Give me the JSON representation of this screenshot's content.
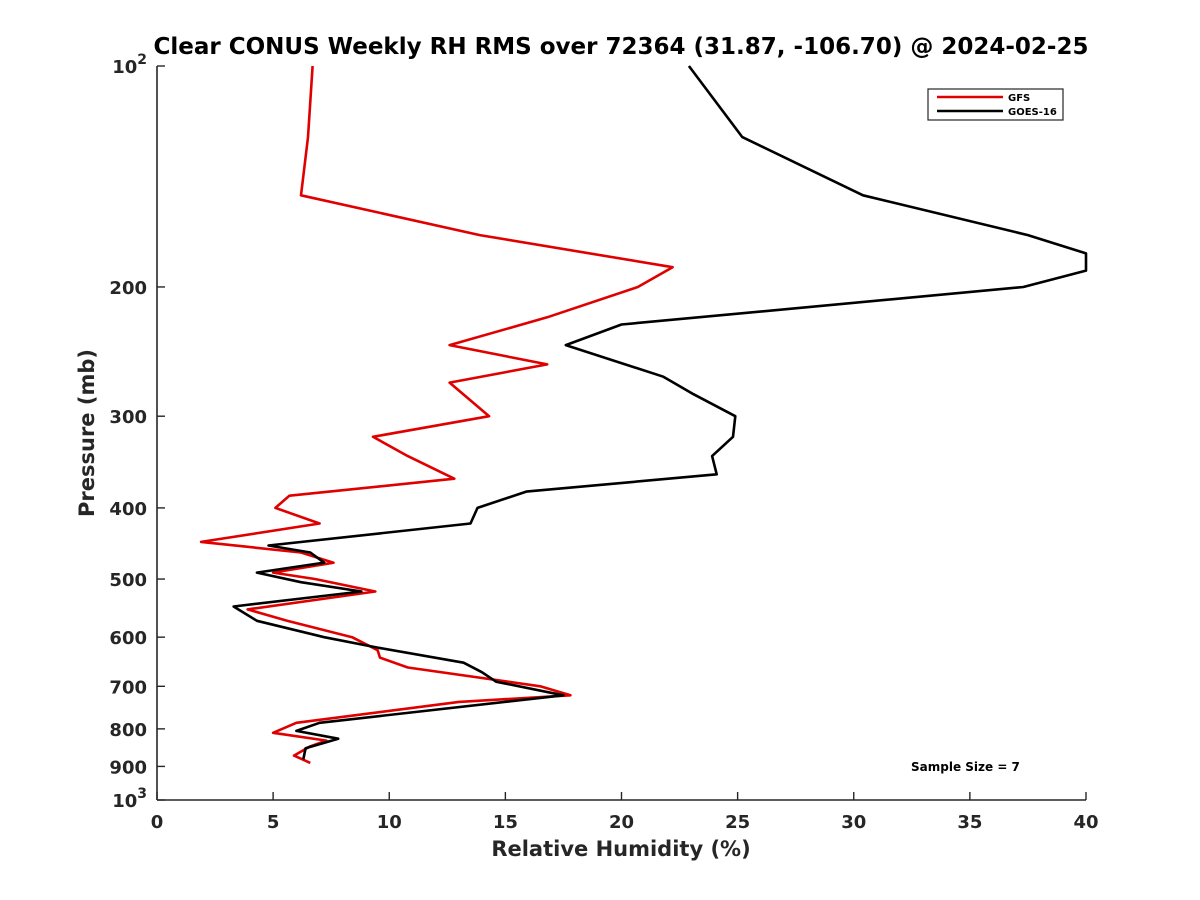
{
  "chart_data": {
    "type": "line",
    "title": "Clear CONUS Weekly RH RMS over 72364 (31.87, -106.70) @ 2024-02-25",
    "xlabel": "Relative Humidity (%)",
    "ylabel": "Pressure (mb)",
    "xlim": [
      0,
      40
    ],
    "ylim": [
      100,
      1000
    ],
    "y_scale": "log",
    "y_reversed": true,
    "x_ticks": [
      0,
      5,
      10,
      15,
      20,
      25,
      30,
      35,
      40
    ],
    "y_ticks": [
      {
        "value": 100,
        "base": "10",
        "exp": "2"
      },
      {
        "value": 200,
        "label": "200"
      },
      {
        "value": 300,
        "label": "300"
      },
      {
        "value": 400,
        "label": "400"
      },
      {
        "value": 500,
        "label": "500"
      },
      {
        "value": 600,
        "label": "600"
      },
      {
        "value": 700,
        "label": "700"
      },
      {
        "value": 800,
        "label": "800"
      },
      {
        "value": 900,
        "label": "900"
      },
      {
        "value": 1000,
        "base": "10",
        "exp": "3"
      }
    ],
    "legend_position": "top-right",
    "series": [
      {
        "name": "GFS",
        "color": "#e00000",
        "points": [
          [
            6.7,
            100
          ],
          [
            6.5,
            125
          ],
          [
            6.2,
            150
          ],
          [
            13.9,
            170
          ],
          [
            22.2,
            188
          ],
          [
            20.7,
            200
          ],
          [
            16.8,
            220
          ],
          [
            12.6,
            240
          ],
          [
            16.8,
            255
          ],
          [
            12.6,
            270
          ],
          [
            14.3,
            300
          ],
          [
            9.3,
            320
          ],
          [
            10.8,
            340
          ],
          [
            12.8,
            365
          ],
          [
            5.7,
            385
          ],
          [
            5.1,
            400
          ],
          [
            7.0,
            420
          ],
          [
            1.9,
            445
          ],
          [
            6.2,
            460
          ],
          [
            7.6,
            475
          ],
          [
            5.0,
            490
          ],
          [
            6.8,
            500
          ],
          [
            9.4,
            520
          ],
          [
            3.9,
            550
          ],
          [
            5.6,
            570
          ],
          [
            8.4,
            600
          ],
          [
            9.5,
            625
          ],
          [
            9.6,
            640
          ],
          [
            10.8,
            660
          ],
          [
            16.5,
            700
          ],
          [
            17.8,
            720
          ],
          [
            13.0,
            735
          ],
          [
            6.0,
            785
          ],
          [
            5.0,
            810
          ],
          [
            7.3,
            830
          ],
          [
            6.6,
            845
          ],
          [
            5.9,
            870
          ],
          [
            6.6,
            890
          ]
        ]
      },
      {
        "name": "GOES-16",
        "color": "#000000",
        "points": [
          [
            22.9,
            100
          ],
          [
            25.2,
            125
          ],
          [
            30.4,
            150
          ],
          [
            37.5,
            170
          ],
          [
            40.0,
            180
          ],
          [
            40.0,
            190
          ],
          [
            37.3,
            200
          ],
          [
            20.0,
            225
          ],
          [
            17.6,
            240
          ],
          [
            21.8,
            265
          ],
          [
            23.1,
            280
          ],
          [
            24.9,
            300
          ],
          [
            24.8,
            320
          ],
          [
            23.9,
            340
          ],
          [
            24.1,
            360
          ],
          [
            15.9,
            380
          ],
          [
            13.8,
            400
          ],
          [
            13.5,
            420
          ],
          [
            4.8,
            450
          ],
          [
            6.6,
            460
          ],
          [
            7.2,
            475
          ],
          [
            4.3,
            490
          ],
          [
            6.2,
            505
          ],
          [
            8.8,
            520
          ],
          [
            3.3,
            545
          ],
          [
            4.3,
            570
          ],
          [
            7.2,
            600
          ],
          [
            9.5,
            620
          ],
          [
            13.2,
            650
          ],
          [
            14.0,
            670
          ],
          [
            14.6,
            690
          ],
          [
            17.5,
            720
          ],
          [
            7.0,
            785
          ],
          [
            6.0,
            805
          ],
          [
            7.8,
            825
          ],
          [
            6.4,
            850
          ],
          [
            6.3,
            880
          ]
        ]
      }
    ],
    "annotations": [
      {
        "text": "Sample Size = 7"
      }
    ]
  }
}
